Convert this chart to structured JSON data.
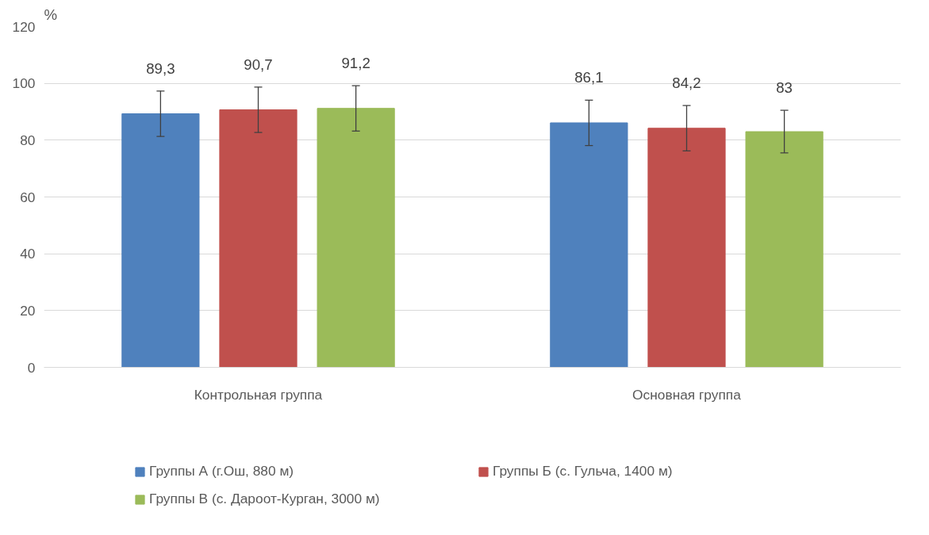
{
  "chart_data": {
    "type": "bar",
    "ylabel": "%",
    "categories": [
      "Контрольная группа",
      "Основная группа"
    ],
    "series": [
      {
        "name": "Группы А (г.Ош, 880 м)",
        "color": "#4f81bd",
        "values": [
          89.3,
          86.1
        ],
        "errors": [
          8,
          8
        ],
        "value_labels": [
          "89,3",
          "86,1"
        ]
      },
      {
        "name": "Группы Б (с. Гульча, 1400 м)",
        "color": "#c0504d",
        "values": [
          90.7,
          84.2
        ],
        "errors": [
          8,
          8
        ],
        "value_labels": [
          "90,7",
          "84,2"
        ]
      },
      {
        "name": "Группы В (с. Дароот-Курган, 3000 м)",
        "color": "#9bbb59",
        "values": [
          91.2,
          83
        ],
        "errors": [
          8,
          7.5
        ],
        "value_labels": [
          "91,2",
          "83"
        ]
      }
    ],
    "ylim": [
      0,
      120
    ],
    "yticks": [
      0,
      20,
      40,
      60,
      80,
      100,
      120
    ],
    "grid": "y",
    "legend": "bottom"
  }
}
